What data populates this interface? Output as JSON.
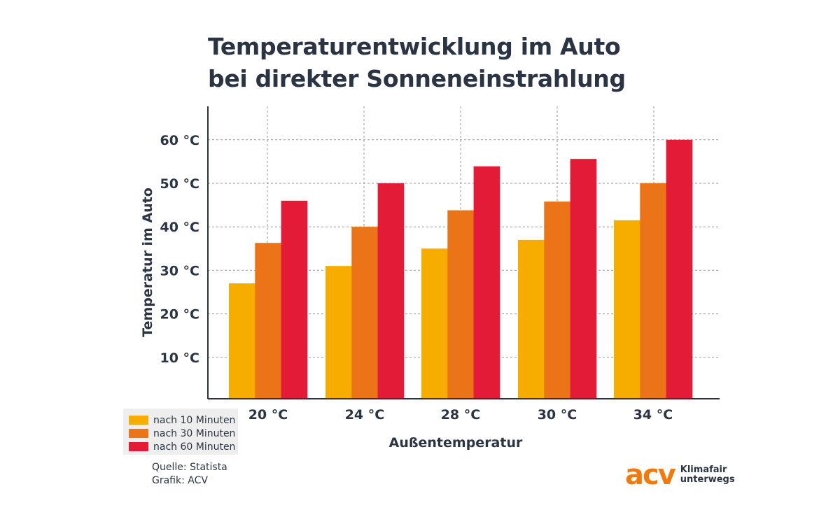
{
  "title_line1": "Temperaturentwicklung im Auto",
  "title_line2": "bei direkter Sonneneinstrahlung",
  "chart_data": {
    "type": "bar",
    "categories": [
      "20 °C",
      "24 °C",
      "28 °C",
      "30 °C",
      "34 °C"
    ],
    "series": [
      {
        "name": "nach 10 Minuten",
        "color": "#f7ad00",
        "values": [
          27,
          31,
          35,
          37,
          41.5
        ]
      },
      {
        "name": "nach 30 Minuten",
        "color": "#ea7417",
        "values": [
          36.3,
          40,
          43.8,
          45.8,
          50
        ]
      },
      {
        "name": "nach 60 Minuten",
        "color": "#e31b37",
        "values": [
          46,
          50,
          53.9,
          55.6,
          60
        ]
      }
    ],
    "xlabel": "Außentemperatur",
    "ylabel": "Temperatur im Auto",
    "yticks": [
      10,
      20,
      30,
      40,
      50,
      60
    ],
    "ytick_labels": [
      "10 °C",
      "20 °C",
      "30 °C",
      "40 °C",
      "50 °C",
      "60 °C"
    ],
    "ylim": [
      0,
      67
    ],
    "grid": true,
    "legend": "bottom-left"
  },
  "source": {
    "line1": "Quelle: Statista",
    "line2": "Grafik: ACV"
  },
  "logo": {
    "mark": "acv",
    "line1": "Klimafair",
    "line2": "unterwegs"
  }
}
